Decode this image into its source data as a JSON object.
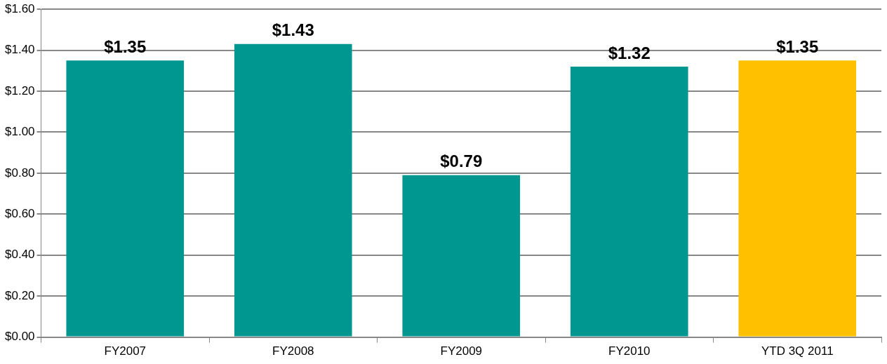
{
  "chart_data": {
    "type": "bar",
    "categories": [
      "FY2007",
      "FY2008",
      "FY2009",
      "FY2010",
      "YTD 3Q 2011"
    ],
    "values": [
      1.35,
      1.43,
      0.79,
      1.32,
      1.35
    ],
    "colors": [
      "#009790",
      "#009790",
      "#009790",
      "#009790",
      "#ffc000"
    ],
    "value_labels": [
      "$1.35",
      "$1.43",
      "$0.79",
      "$1.32",
      "$1.35"
    ],
    "ylim": [
      0,
      1.6
    ],
    "yticks": [
      {
        "value": 0,
        "label": "$0.00"
      },
      {
        "value": 0.2,
        "label": "$0.20"
      },
      {
        "value": 0.4,
        "label": "$0.40"
      },
      {
        "value": 0.6,
        "label": "$0.60"
      },
      {
        "value": 0.8,
        "label": "$0.80"
      },
      {
        "value": 1.0,
        "label": "$1.00"
      },
      {
        "value": 1.2,
        "label": "$1.20"
      },
      {
        "value": 1.4,
        "label": "$1.40"
      },
      {
        "value": 1.6,
        "label": "$1.60"
      }
    ],
    "grid": "y",
    "legend": false
  }
}
